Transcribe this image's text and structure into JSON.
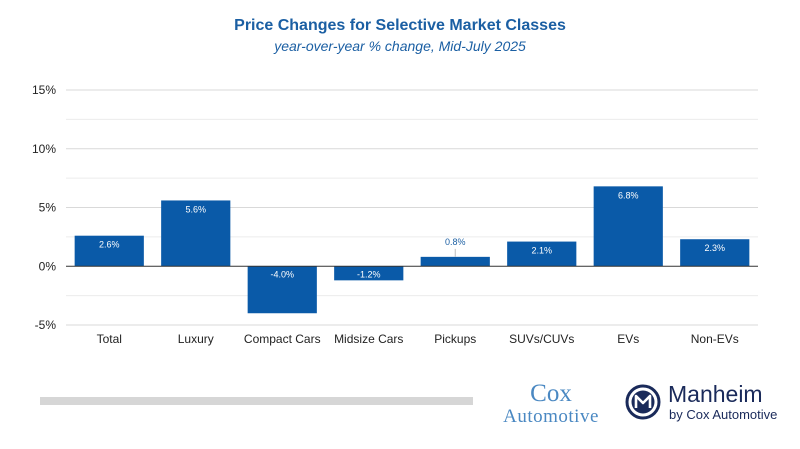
{
  "chart_data": {
    "type": "bar",
    "title": "Price Changes for Selective Market Classes",
    "subtitle": "year-over-year % change, Mid-July 2025",
    "categories": [
      "Total",
      "Luxury",
      "Compact Cars",
      "Midsize Cars",
      "Pickups",
      "SUVs/CUVs",
      "EVs",
      "Non-EVs"
    ],
    "values": [
      2.6,
      5.6,
      -4.0,
      -1.2,
      0.8,
      2.1,
      6.8,
      2.3
    ],
    "data_labels": [
      "2.6%",
      "5.6%",
      "-4.0%",
      "-1.2%",
      "0.8%",
      "2.1%",
      "6.8%",
      "2.3%"
    ],
    "ylim": [
      -5,
      15
    ],
    "yticks": [
      -5,
      0,
      5,
      10,
      15
    ],
    "ytick_labels": [
      "-5%",
      "0%",
      "5%",
      "10%",
      "15%"
    ],
    "minor_gridlines": true,
    "xlabel": "",
    "ylabel": "",
    "bar_color": "#0a5aa8"
  },
  "logos": {
    "cox_top": "Cox",
    "cox_bottom": "Automotive",
    "manheim_name": "Manheim",
    "manheim_sub": "by Cox Automotive",
    "cox_color": "#4a88c2",
    "manheim_color": "#1a2a5a"
  }
}
